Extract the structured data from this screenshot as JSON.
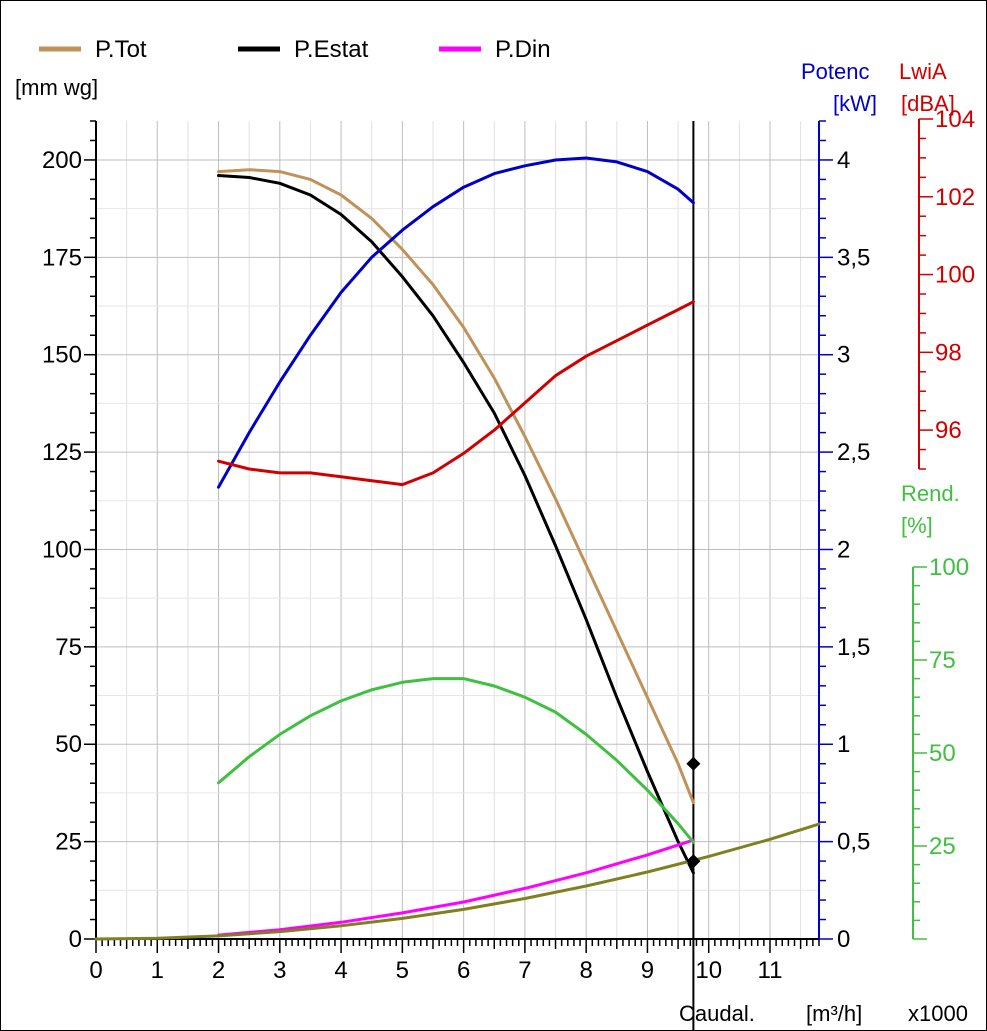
{
  "chart_data": {
    "type": "line",
    "legend": {
      "placement": "top-left",
      "entries": [
        {
          "name": "P.Tot",
          "color": "#c0925a"
        },
        {
          "name": "P.Estat",
          "color": "#000000"
        },
        {
          "name": "P.Din",
          "color": "#ff00ff"
        }
      ]
    },
    "grid": true,
    "x_axis": {
      "label": "Caudal.",
      "unit": "[m³/h]",
      "multiplier": "x1000",
      "range": [
        0,
        11.8
      ],
      "ticks": [
        "0",
        "1",
        "2",
        "3",
        "4",
        "5",
        "6",
        "7",
        "8",
        "9",
        "10",
        "11"
      ]
    },
    "y_axes": {
      "pressure": {
        "unit": "[mm wg]",
        "range": [
          0,
          210
        ],
        "ticks": [
          "0",
          "25",
          "50",
          "75",
          "100",
          "125",
          "150",
          "175",
          "200"
        ],
        "color": "#000000"
      },
      "power": {
        "label": "Potenc",
        "unit": "[kW]",
        "range": [
          0,
          4.2
        ],
        "ticks": [
          "0",
          "0,5",
          "1",
          "1,5",
          "2",
          "2,5",
          "3",
          "3,5",
          "4"
        ],
        "color": "#0000c8"
      },
      "sound": {
        "label": "LwiA",
        "unit": "[dBA]",
        "range": [
          95,
          104
        ],
        "ticks": [
          "96",
          "98",
          "100",
          "102",
          "104"
        ],
        "color": "#d00000"
      },
      "efficiency": {
        "label": "Rend.",
        "unit": "[%]",
        "range": [
          0,
          100
        ],
        "ticks": [
          "25",
          "50",
          "75",
          "100"
        ],
        "color": "#40c040"
      }
    },
    "operating_point_x": 9.75,
    "series": [
      {
        "name": "P.Tot",
        "axis": "pressure",
        "color": "#c0925a",
        "points": [
          [
            2,
            197
          ],
          [
            2.5,
            197.5
          ],
          [
            3,
            197
          ],
          [
            3.5,
            195
          ],
          [
            4,
            191
          ],
          [
            4.5,
            185
          ],
          [
            5,
            177
          ],
          [
            5.5,
            168
          ],
          [
            6,
            157
          ],
          [
            6.5,
            144
          ],
          [
            7,
            129
          ],
          [
            7.5,
            113
          ],
          [
            8,
            96
          ],
          [
            8.5,
            79
          ],
          [
            9,
            62
          ],
          [
            9.5,
            45
          ],
          [
            9.75,
            35
          ]
        ]
      },
      {
        "name": "P.Estat",
        "axis": "pressure",
        "color": "#000000",
        "points": [
          [
            2,
            196
          ],
          [
            2.5,
            195.5
          ],
          [
            3,
            194
          ],
          [
            3.5,
            191
          ],
          [
            4,
            186
          ],
          [
            4.5,
            179
          ],
          [
            5,
            170
          ],
          [
            5.5,
            160
          ],
          [
            6,
            148
          ],
          [
            6.5,
            135
          ],
          [
            7,
            119
          ],
          [
            7.5,
            101
          ],
          [
            8,
            82
          ],
          [
            8.5,
            62
          ],
          [
            9,
            43
          ],
          [
            9.5,
            25
          ],
          [
            9.75,
            17
          ]
        ]
      },
      {
        "name": "P.Din",
        "axis": "pressure",
        "color": "#ff00ff",
        "points": [
          [
            2,
            1
          ],
          [
            3,
            2.4
          ],
          [
            4,
            4.3
          ],
          [
            5,
            6.7
          ],
          [
            6,
            9.5
          ],
          [
            7,
            13
          ],
          [
            8,
            17
          ],
          [
            9,
            21.6
          ],
          [
            9.75,
            25.4
          ]
        ]
      },
      {
        "axis": "pressure",
        "color": "#808020",
        "points": [
          [
            0,
            0
          ],
          [
            1,
            0.2
          ],
          [
            2,
            0.8
          ],
          [
            3,
            1.9
          ],
          [
            4,
            3.4
          ],
          [
            5,
            5.3
          ],
          [
            6,
            7.6
          ],
          [
            7,
            10.4
          ],
          [
            8,
            13.6
          ],
          [
            9,
            17.2
          ],
          [
            10,
            21.2
          ],
          [
            11,
            25.6
          ],
          [
            11.8,
            29.5
          ]
        ]
      },
      {
        "name": "Potenc",
        "axis": "power",
        "color": "#0000c8",
        "points": [
          [
            2,
            2.32
          ],
          [
            2.5,
            2.6
          ],
          [
            3,
            2.86
          ],
          [
            3.5,
            3.1
          ],
          [
            4,
            3.32
          ],
          [
            4.5,
            3.5
          ],
          [
            5,
            3.64
          ],
          [
            5.5,
            3.76
          ],
          [
            6,
            3.86
          ],
          [
            6.5,
            3.93
          ],
          [
            7,
            3.97
          ],
          [
            7.5,
            4.0
          ],
          [
            8,
            4.01
          ],
          [
            8.5,
            3.99
          ],
          [
            9,
            3.94
          ],
          [
            9.5,
            3.85
          ],
          [
            9.75,
            3.78
          ]
        ]
      },
      {
        "name": "LwiA",
        "axis": "sound",
        "color": "#d00000",
        "points": [
          [
            2,
            95.2
          ],
          [
            2.5,
            95
          ],
          [
            3,
            94.9
          ],
          [
            3.5,
            94.9
          ],
          [
            4,
            94.8
          ],
          [
            4.5,
            94.7
          ],
          [
            5,
            94.6
          ],
          [
            5.5,
            94.9
          ],
          [
            6,
            95.4
          ],
          [
            6.5,
            96
          ],
          [
            7,
            96.7
          ],
          [
            7.5,
            97.4
          ],
          [
            8,
            97.9
          ],
          [
            8.5,
            98.3
          ],
          [
            9,
            98.7
          ],
          [
            9.5,
            99.1
          ],
          [
            9.75,
            99.3
          ]
        ]
      },
      {
        "name": "Rend.",
        "axis": "efficiency",
        "color": "#40c040",
        "points": [
          [
            2,
            42
          ],
          [
            2.5,
            49
          ],
          [
            3,
            55
          ],
          [
            3.5,
            60
          ],
          [
            4,
            64
          ],
          [
            4.5,
            67
          ],
          [
            5,
            69
          ],
          [
            5.5,
            70
          ],
          [
            6,
            70
          ],
          [
            6.5,
            68
          ],
          [
            7,
            65
          ],
          [
            7.5,
            61
          ],
          [
            8,
            55
          ],
          [
            8.5,
            48
          ],
          [
            9,
            40
          ],
          [
            9.5,
            31
          ],
          [
            9.75,
            26
          ]
        ]
      }
    ],
    "markers": [
      {
        "axis": "pressure",
        "x": 9.75,
        "y": 45
      },
      {
        "axis": "pressure",
        "x": 9.75,
        "y": 20
      }
    ]
  }
}
